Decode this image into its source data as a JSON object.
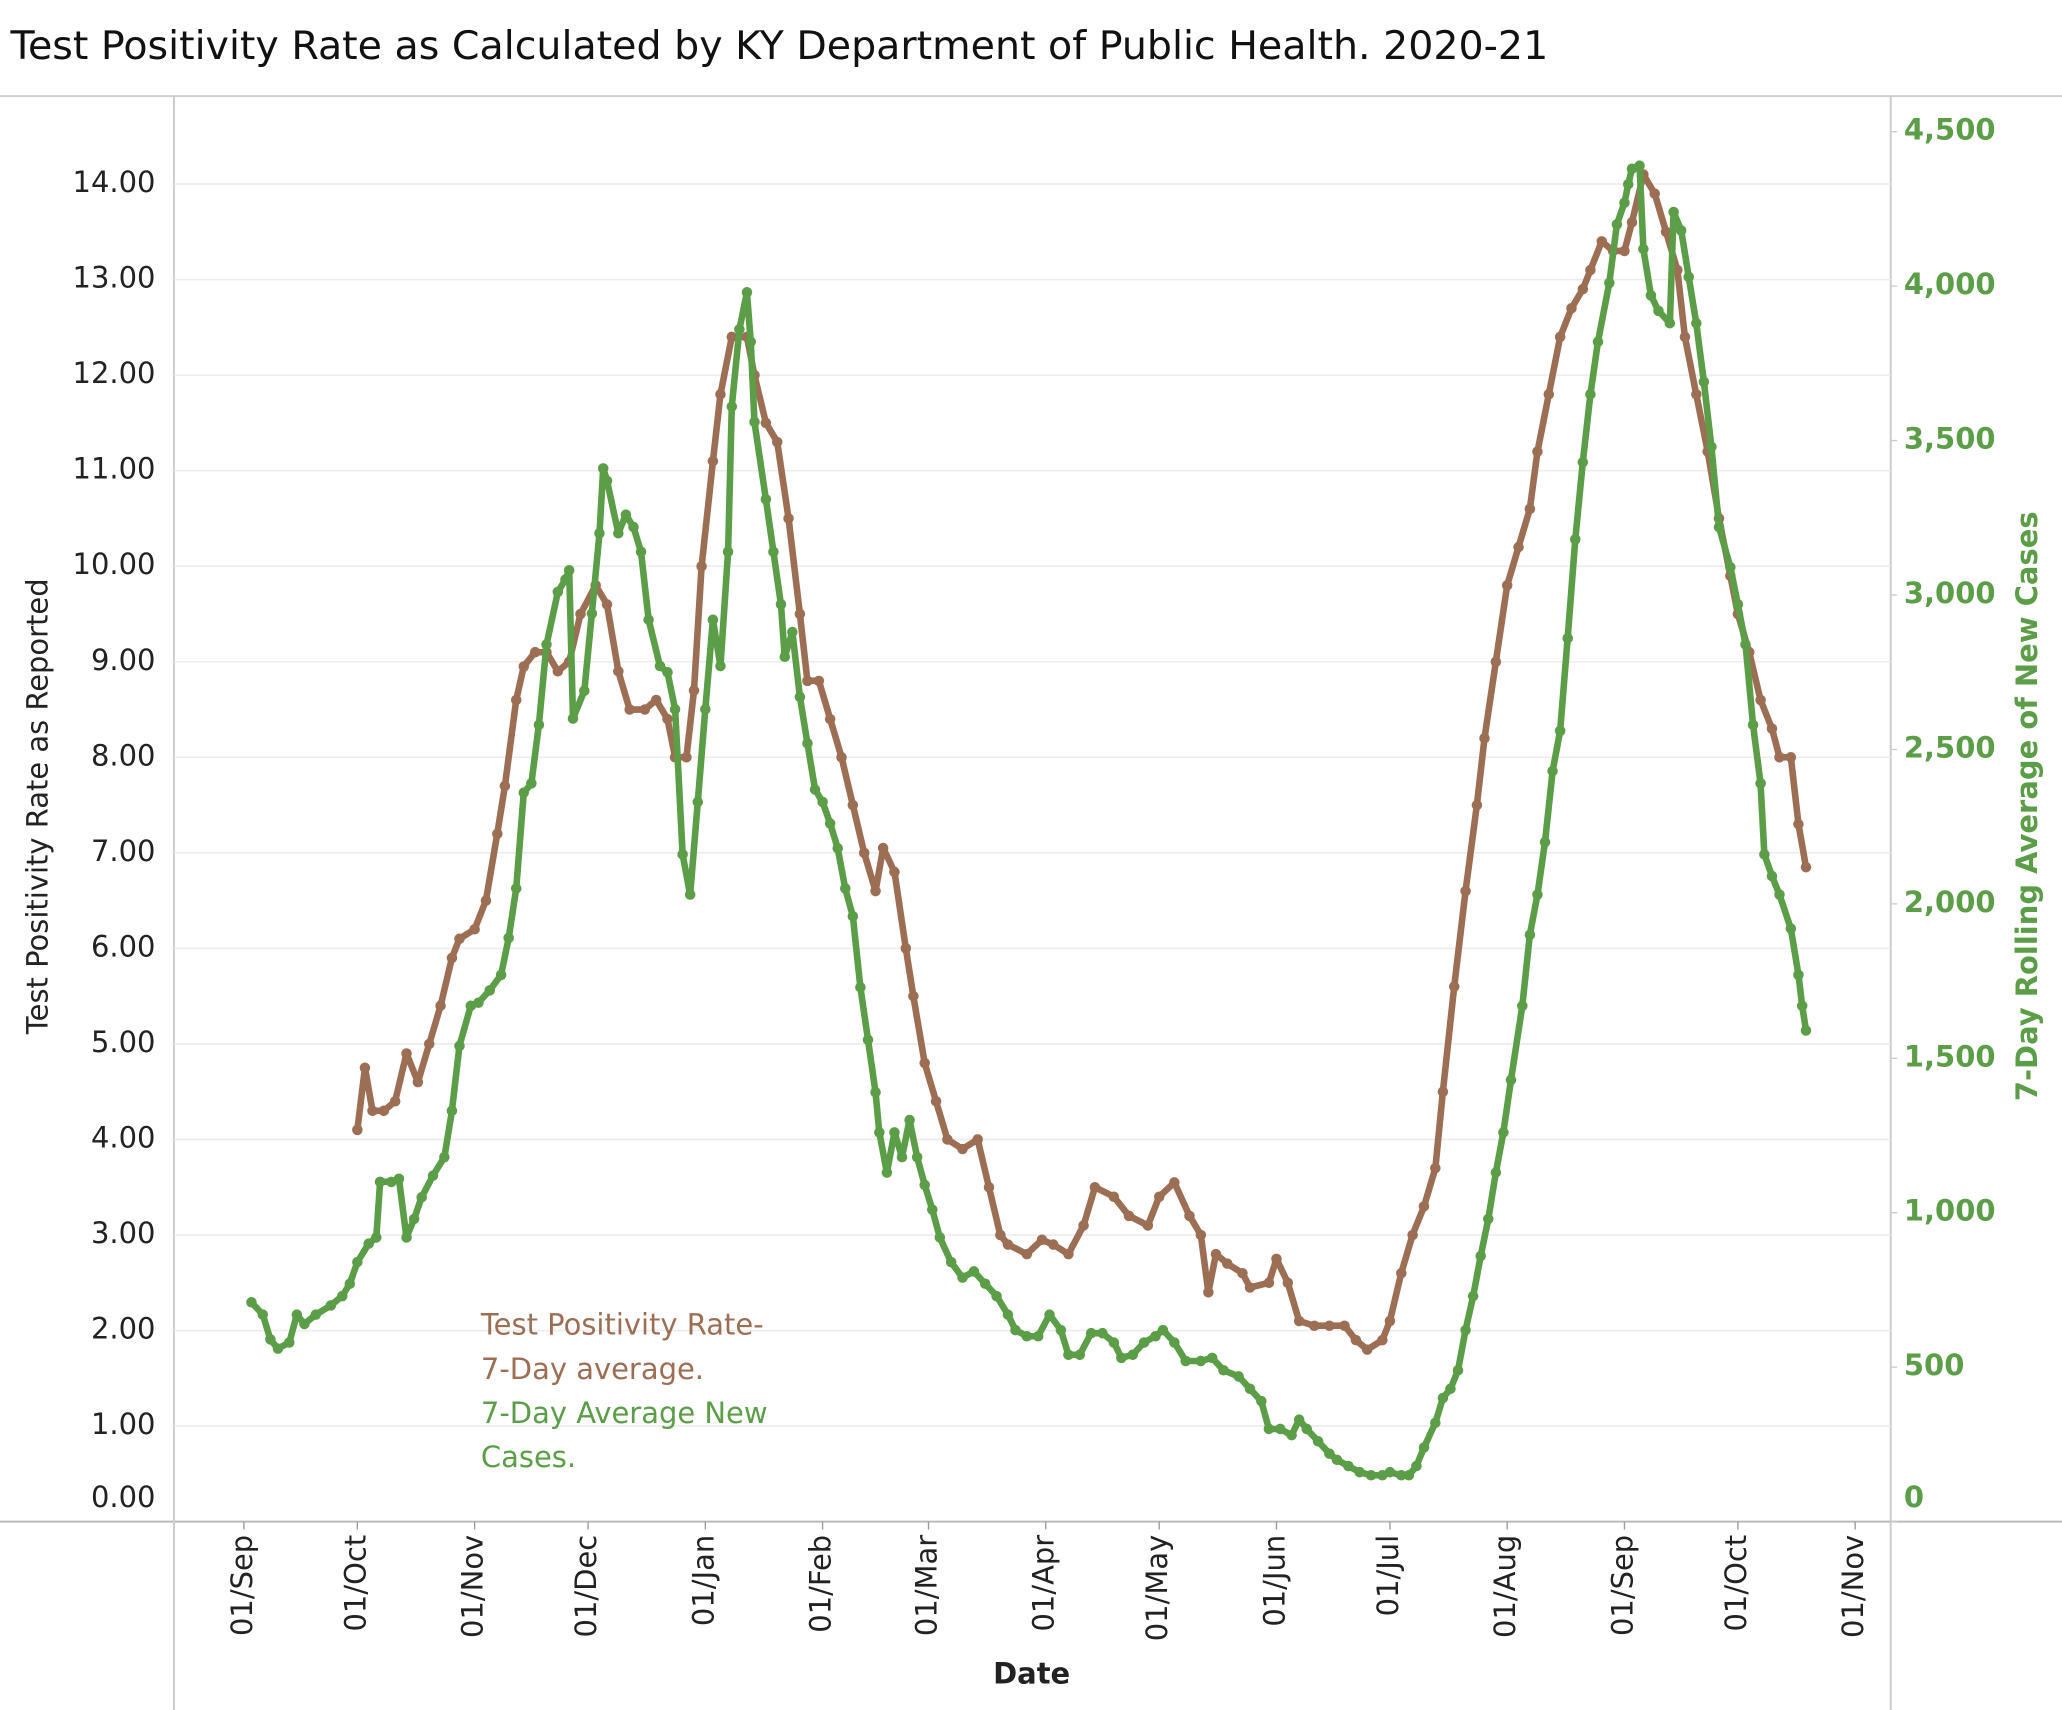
{
  "chart_data": {
    "type": "line",
    "title": "Test Positivity Rate as Calculated by KY Department of Public Health. 2020-21",
    "x_label": "Date",
    "y_label": "Test Positivity Rate as Reported",
    "y2_label": "7-Day Rolling  Average of New Cases",
    "xlim": [
      -18.5,
      435.4
    ],
    "xticks": [
      {
        "value": 0,
        "label": "01/Sep"
      },
      {
        "value": 30,
        "label": "01/Oct"
      },
      {
        "value": 61,
        "label": "01/Nov"
      },
      {
        "value": 91,
        "label": "01/Dec"
      },
      {
        "value": 122,
        "label": "01/Jan"
      },
      {
        "value": 153,
        "label": "01/Feb"
      },
      {
        "value": 181,
        "label": "01/Mar"
      },
      {
        "value": 212,
        "label": "01/Apr"
      },
      {
        "value": 242,
        "label": "01/May"
      },
      {
        "value": 273,
        "label": "01/Jun"
      },
      {
        "value": 303,
        "label": "01/Jul"
      },
      {
        "value": 334,
        "label": "01/Aug"
      },
      {
        "value": 365,
        "label": "01/Sep"
      },
      {
        "value": 395,
        "label": "01/Oct"
      },
      {
        "value": 426,
        "label": "01/Nov"
      }
    ],
    "ylim": [
      0,
      14.92
    ],
    "yticks": [
      {
        "value": 0,
        "label": "0.00"
      },
      {
        "value": 1,
        "label": "1.00"
      },
      {
        "value": 2,
        "label": "2.00"
      },
      {
        "value": 3,
        "label": "3.00"
      },
      {
        "value": 4,
        "label": "4.00"
      },
      {
        "value": 5,
        "label": "5.00"
      },
      {
        "value": 6,
        "label": "6.00"
      },
      {
        "value": 7,
        "label": "7.00"
      },
      {
        "value": 8,
        "label": "8.00"
      },
      {
        "value": 9,
        "label": "9.00"
      },
      {
        "value": 10,
        "label": "10.00"
      },
      {
        "value": 11,
        "label": "11.00"
      },
      {
        "value": 12,
        "label": "12.00"
      },
      {
        "value": 13,
        "label": "13.00"
      },
      {
        "value": 14,
        "label": "14.00"
      }
    ],
    "y2lim": [
      0,
      4615
    ],
    "y2ticks": [
      0,
      500,
      {
        "value": 1000,
        "label": "1,000"
      },
      {
        "value": 1500,
        "label": "1,500"
      },
      {
        "value": 2000,
        "label": "2,000"
      },
      {
        "value": 2500,
        "label": "2,500"
      },
      {
        "value": 3000,
        "label": "3,000"
      },
      {
        "value": 3500,
        "label": "3,500"
      },
      {
        "value": 4000,
        "label": "4,000"
      },
      {
        "value": 4500,
        "label": "4,500"
      }
    ],
    "y2_color": "#5b9e47",
    "grid": true,
    "annotations": [
      {
        "text": "Test Positivity Rate-",
        "color": "#9c6f55"
      },
      {
        "text": "7-Day average.",
        "color": "#9c6f55"
      },
      {
        "text": "7-Day Average New",
        "color": "#5b9e47"
      },
      {
        "text": "Cases.",
        "color": "#5b9e47"
      }
    ],
    "series": [
      {
        "name": "Test Positivity Rate- 7-Day average.",
        "color": "#9c6f55",
        "axis": "y",
        "x": [
          30,
          32,
          34,
          37,
          40,
          43,
          46,
          49,
          52,
          55,
          57,
          61,
          64,
          67,
          69,
          72,
          74,
          77,
          80,
          83,
          86,
          89,
          93,
          96,
          99,
          102,
          106,
          109,
          112,
          114,
          117,
          119,
          121,
          124,
          126,
          129,
          133,
          135,
          138,
          141,
          144,
          147,
          149,
          152,
          155,
          158,
          161,
          164,
          167,
          169,
          172,
          175,
          177,
          180,
          183,
          186,
          190,
          194,
          197,
          200,
          202,
          207,
          211,
          214,
          218,
          222,
          225,
          230,
          234,
          239,
          242,
          246,
          250,
          253,
          255,
          257,
          260,
          264,
          266,
          271,
          273,
          276,
          279,
          283,
          287,
          291,
          294,
          297,
          301,
          303,
          306,
          309,
          312,
          315,
          317,
          320,
          323,
          326,
          328,
          331,
          334,
          337,
          340,
          342,
          345,
          348,
          351,
          354,
          356,
          359,
          362,
          365,
          367,
          370,
          373,
          376,
          379,
          381,
          384,
          387,
          390,
          393,
          395,
          398,
          401,
          404,
          406,
          409,
          411,
          413
        ],
        "values": [
          4.1,
          4.75,
          4.3,
          4.3,
          4.4,
          4.9,
          4.6,
          5.0,
          5.4,
          5.9,
          6.1,
          6.2,
          6.5,
          7.2,
          7.7,
          8.6,
          8.95,
          9.1,
          9.1,
          8.9,
          9.0,
          9.5,
          9.8,
          9.6,
          8.9,
          8.5,
          8.5,
          8.6,
          8.4,
          8.0,
          8.0,
          8.7,
          10.0,
          11.1,
          11.8,
          12.4,
          12.4,
          12.0,
          11.5,
          11.3,
          10.5,
          9.5,
          8.8,
          8.8,
          8.4,
          8.0,
          7.5,
          7.0,
          6.6,
          7.05,
          6.8,
          6.0,
          5.5,
          4.8,
          4.4,
          4.0,
          3.9,
          4.0,
          3.5,
          3.0,
          2.9,
          2.8,
          2.95,
          2.9,
          2.8,
          3.1,
          3.5,
          3.4,
          3.2,
          3.1,
          3.4,
          3.55,
          3.2,
          3.0,
          2.4,
          2.8,
          2.7,
          2.6,
          2.45,
          2.5,
          2.75,
          2.5,
          2.1,
          2.05,
          2.05,
          2.05,
          1.9,
          1.8,
          1.9,
          2.1,
          2.6,
          3.0,
          3.3,
          3.7,
          4.5,
          5.6,
          6.6,
          7.5,
          8.2,
          9.0,
          9.8,
          10.2,
          10.6,
          11.2,
          11.8,
          12.4,
          12.7,
          12.9,
          13.1,
          13.4,
          13.3,
          13.3,
          13.6,
          14.1,
          13.9,
          13.5,
          13.1,
          12.4,
          11.8,
          11.2,
          10.5,
          9.9,
          9.5,
          9.1,
          8.6,
          8.3,
          8.0,
          8.0,
          7.3,
          6.85
        ]
      },
      {
        "name": "7-Day Average New Cases.",
        "color": "#5b9e47",
        "axis": "y2",
        "x": [
          2,
          5,
          7,
          9,
          12,
          14,
          16,
          19,
          23,
          26,
          28,
          30,
          33,
          35,
          36,
          39,
          41,
          43,
          45,
          47,
          50,
          53,
          55,
          57,
          60,
          62,
          65,
          68,
          70,
          72,
          74,
          76,
          78,
          80,
          83,
          85,
          86,
          87,
          90,
          92,
          94,
          95,
          96,
          99,
          101,
          103,
          105,
          107,
          110,
          112,
          114,
          116,
          118,
          120,
          122,
          124,
          126,
          128,
          129,
          131,
          133,
          134,
          135,
          138,
          140,
          142,
          143,
          145,
          147,
          149,
          151,
          153,
          155,
          157,
          159,
          161,
          163,
          165,
          167,
          168,
          170,
          172,
          174,
          176,
          178,
          180,
          182,
          184,
          187,
          190,
          193,
          196,
          199,
          202,
          204,
          207,
          210,
          213,
          216,
          218,
          221,
          224,
          227,
          230,
          232,
          235,
          238,
          241,
          243,
          246,
          249,
          253,
          256,
          259,
          263,
          266,
          269,
          271,
          274,
          277,
          279,
          281,
          284,
          287,
          289,
          292,
          295,
          298,
          301,
          303,
          306,
          308,
          310,
          312,
          315,
          317,
          319,
          321,
          323,
          325,
          327,
          329,
          331,
          333,
          335,
          338,
          340,
          342,
          344,
          346,
          348,
          350,
          352,
          354,
          356,
          358,
          361,
          363,
          365,
          366,
          367,
          369,
          370,
          372,
          374,
          377,
          378,
          380,
          382,
          384,
          386,
          388,
          390,
          393,
          395,
          397,
          399,
          401,
          402,
          404,
          406,
          409,
          411,
          412,
          413
        ],
        "values": [
          710,
          670,
          590,
          560,
          580,
          670,
          640,
          670,
          700,
          730,
          770,
          840,
          900,
          920,
          1100,
          1100,
          1110,
          920,
          980,
          1050,
          1120,
          1180,
          1330,
          1540,
          1670,
          1680,
          1720,
          1770,
          1890,
          2050,
          2360,
          2390,
          2580,
          2840,
          3010,
          3050,
          3080,
          2600,
          2690,
          2940,
          3200,
          3410,
          3370,
          3200,
          3260,
          3220,
          3140,
          2920,
          2770,
          2750,
          2630,
          2160,
          2030,
          2330,
          2630,
          2920,
          2770,
          3140,
          3610,
          3860,
          3980,
          3820,
          3560,
          3310,
          3140,
          2970,
          2800,
          2880,
          2670,
          2520,
          2370,
          2330,
          2260,
          2180,
          2050,
          1960,
          1730,
          1560,
          1390,
          1260,
          1130,
          1260,
          1180,
          1300,
          1180,
          1090,
          1010,
          920,
          840,
          790,
          810,
          770,
          730,
          670,
          620,
          600,
          600,
          670,
          620,
          540,
          540,
          610,
          610,
          580,
          530,
          540,
          580,
          600,
          620,
          580,
          520,
          520,
          530,
          490,
          470,
          430,
          390,
          300,
          300,
          280,
          330,
          300,
          260,
          220,
          200,
          180,
          160,
          150,
          150,
          160,
          150,
          150,
          180,
          240,
          320,
          400,
          430,
          490,
          620,
          730,
          860,
          980,
          1130,
          1260,
          1430,
          1670,
          1900,
          2030,
          2200,
          2430,
          2560,
          2860,
          3180,
          3430,
          3650,
          3820,
          4010,
          4200,
          4270,
          4330,
          4380,
          4390,
          4120,
          3970,
          3920,
          3880,
          4240,
          4180,
          4030,
          3880,
          3690,
          3480,
          3220,
          3090,
          2970,
          2840,
          2580,
          2390,
          2160,
          2090,
          2030,
          1920,
          1770,
          1670,
          1590
        ]
      }
    ]
  }
}
